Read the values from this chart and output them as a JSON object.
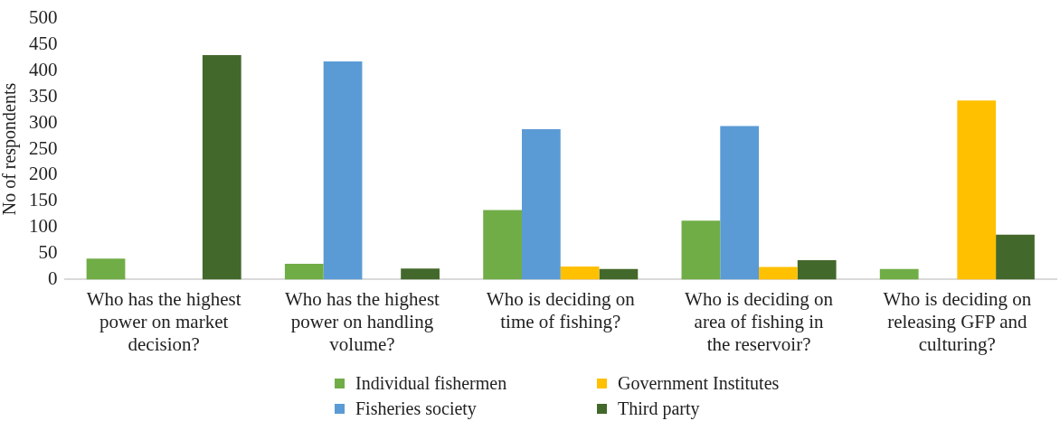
{
  "chart_data": {
    "type": "bar",
    "ylabel": "No of respondents",
    "categories": [
      "Who has the highest power on market decision?",
      "Who has the highest power on handling volume?",
      "Who is deciding on time of fishing?",
      "Who is deciding on area of fishing in the reservoir?",
      "Who is deciding on releasing GFP and culturing?"
    ],
    "series": [
      {
        "name": "Individual fishermen",
        "color": "#70ad47",
        "values": [
          40,
          30,
          133,
          113,
          20
        ]
      },
      {
        "name": "Fisheries society",
        "color": "#5b9bd5",
        "values": [
          null,
          418,
          288,
          294,
          null
        ]
      },
      {
        "name": "Government Institutes",
        "color": "#ffc000",
        "values": [
          null,
          null,
          25,
          24,
          343
        ]
      },
      {
        "name": "Third party",
        "color": "#43682b",
        "values": [
          430,
          21,
          20,
          37,
          86
        ]
      }
    ],
    "ylim": [
      0,
      500
    ],
    "yticks": [
      0,
      50,
      100,
      150,
      200,
      250,
      300,
      350,
      400,
      450,
      500
    ],
    "grid": false,
    "legend": "bottom"
  }
}
